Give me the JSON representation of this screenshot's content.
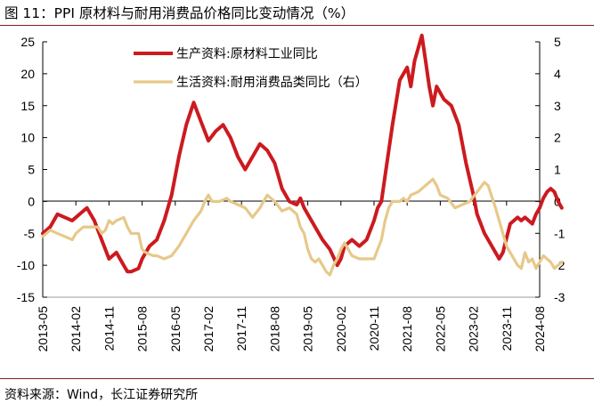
{
  "title": "图 11：PPI 原材料与耐用消费品价格同比变动情况（%）",
  "source": "资料来源：Wind，长江证券研究所",
  "colors": {
    "primary": "#cc1a1f",
    "secondary": "#e6c98a",
    "axis": "#000000",
    "rule": "#7f1f24"
  },
  "chart_data": {
    "type": "line",
    "left_ylim": [
      -15,
      25
    ],
    "right_ylim": [
      -3,
      5
    ],
    "left_yticks": [
      -15,
      -10,
      -5,
      0,
      5,
      10,
      15,
      20,
      25
    ],
    "right_yticks": [
      -3,
      -2,
      -1,
      0,
      1,
      2,
      3,
      4,
      5
    ],
    "x_tick_labels": [
      "2013-05",
      "2014-02",
      "2014-11",
      "2015-08",
      "2016-05",
      "2017-02",
      "2017-11",
      "2018-08",
      "2019-05",
      "2020-02",
      "2020-11",
      "2021-08",
      "2022-05",
      "2023-02",
      "2023-11",
      "2024-08"
    ],
    "x_tick_months": 9,
    "start_month": "2013-05",
    "end_month": "2024-08",
    "series": [
      {
        "name": "生产资料:原材料工业同比",
        "axis": "left",
        "color": "#cc1a1f",
        "points": [
          [
            0,
            -5
          ],
          [
            2,
            -4
          ],
          [
            4,
            -2
          ],
          [
            6,
            -2.5
          ],
          [
            8,
            -3
          ],
          [
            10,
            -2
          ],
          [
            12,
            -1
          ],
          [
            14,
            -3
          ],
          [
            16,
            -6
          ],
          [
            17,
            -7.5
          ],
          [
            18,
            -9
          ],
          [
            19,
            -8.5
          ],
          [
            20,
            -8
          ],
          [
            22,
            -10
          ],
          [
            23,
            -11
          ],
          [
            24,
            -11
          ],
          [
            26,
            -10.5
          ],
          [
            27,
            -9
          ],
          [
            29,
            -7
          ],
          [
            31,
            -6
          ],
          [
            33,
            -3
          ],
          [
            35,
            1
          ],
          [
            37,
            7
          ],
          [
            39,
            12
          ],
          [
            41,
            15.5
          ],
          [
            43,
            12.5
          ],
          [
            45,
            9.5
          ],
          [
            47,
            11
          ],
          [
            49,
            12
          ],
          [
            51,
            10
          ],
          [
            53,
            7
          ],
          [
            55,
            5
          ],
          [
            57,
            7
          ],
          [
            59,
            9
          ],
          [
            61,
            8
          ],
          [
            63,
            6
          ],
          [
            65,
            2
          ],
          [
            67,
            0
          ],
          [
            69,
            -0.5
          ],
          [
            70,
            0.5
          ],
          [
            71,
            -1
          ],
          [
            73,
            -3
          ],
          [
            75,
            -5
          ],
          [
            76,
            -6
          ],
          [
            78,
            -7.5
          ],
          [
            80,
            -10
          ],
          [
            81,
            -9
          ],
          [
            82,
            -7
          ],
          [
            84,
            -6
          ],
          [
            86,
            -7
          ],
          [
            88,
            -6
          ],
          [
            90,
            -3
          ],
          [
            91,
            -1
          ],
          [
            92,
            0
          ],
          [
            93,
            4
          ],
          [
            95,
            12
          ],
          [
            97,
            19
          ],
          [
            99,
            21
          ],
          [
            100,
            18
          ],
          [
            101,
            22
          ],
          [
            102,
            24
          ],
          [
            103,
            26
          ],
          [
            104,
            22
          ],
          [
            105,
            18
          ],
          [
            106,
            15
          ],
          [
            107,
            18
          ],
          [
            109,
            16
          ],
          [
            111,
            15
          ],
          [
            113,
            12
          ],
          [
            115,
            6
          ],
          [
            117,
            1
          ],
          [
            118,
            -2
          ],
          [
            120,
            -5
          ],
          [
            122,
            -7
          ],
          [
            124,
            -9
          ],
          [
            125,
            -8
          ],
          [
            127,
            -3.5
          ],
          [
            128,
            -3
          ],
          [
            129,
            -2.5
          ],
          [
            130,
            -3
          ],
          [
            131,
            -2.5
          ],
          [
            132,
            -3
          ],
          [
            133,
            -3.5
          ],
          [
            134,
            -2
          ],
          [
            135,
            -1
          ],
          [
            136,
            0.5
          ],
          [
            137,
            1.5
          ],
          [
            138,
            2
          ],
          [
            139,
            1.5
          ],
          [
            140,
            0
          ],
          [
            141,
            -1
          ]
        ]
      },
      {
        "name": "生活资料:耐用消费品类同比（右）",
        "axis": "right",
        "color": "#e6c98a",
        "points": [
          [
            0,
            -1.1
          ],
          [
            2,
            -0.9
          ],
          [
            4,
            -1.0
          ],
          [
            6,
            -1.1
          ],
          [
            8,
            -1.2
          ],
          [
            9,
            -1.0
          ],
          [
            11,
            -0.8
          ],
          [
            13,
            -0.8
          ],
          [
            15,
            -0.8
          ],
          [
            16,
            -1.0
          ],
          [
            17,
            -0.9
          ],
          [
            18,
            -0.6
          ],
          [
            19,
            -0.7
          ],
          [
            20,
            -0.6
          ],
          [
            22,
            -0.5
          ],
          [
            23,
            -0.8
          ],
          [
            24,
            -1.0
          ],
          [
            26,
            -1.0
          ],
          [
            27,
            -1.5
          ],
          [
            28,
            -1.6
          ],
          [
            30,
            -1.7
          ],
          [
            31,
            -1.7
          ],
          [
            33,
            -1.8
          ],
          [
            35,
            -1.7
          ],
          [
            37,
            -1.4
          ],
          [
            39,
            -1.0
          ],
          [
            41,
            -0.6
          ],
          [
            43,
            -0.3
          ],
          [
            44,
            0.0
          ],
          [
            45,
            0.2
          ],
          [
            46,
            0.0
          ],
          [
            48,
            0.0
          ],
          [
            50,
            0.1
          ],
          [
            51,
            0.0
          ],
          [
            53,
            -0.1
          ],
          [
            55,
            -0.2
          ],
          [
            57,
            -0.5
          ],
          [
            59,
            -0.2
          ],
          [
            61,
            0.2
          ],
          [
            63,
            0.0
          ],
          [
            65,
            -0.3
          ],
          [
            67,
            -0.2
          ],
          [
            69,
            -0.4
          ],
          [
            70,
            -0.8
          ],
          [
            71,
            -1.0
          ],
          [
            72,
            -1.5
          ],
          [
            73,
            -1.8
          ],
          [
            74,
            -1.9
          ],
          [
            75,
            -1.8
          ],
          [
            76,
            -2.0
          ],
          [
            77,
            -2.2
          ],
          [
            78,
            -2.3
          ],
          [
            79,
            -2.0
          ],
          [
            80,
            -1.8
          ],
          [
            81,
            -1.5
          ],
          [
            82,
            -1.3
          ],
          [
            84,
            -1.7
          ],
          [
            86,
            -1.8
          ],
          [
            88,
            -1.8
          ],
          [
            90,
            -1.8
          ],
          [
            91,
            -1.5
          ],
          [
            92,
            -1.2
          ],
          [
            93,
            -0.6
          ],
          [
            94,
            -0.2
          ],
          [
            95,
            0.0
          ],
          [
            97,
            0.0
          ],
          [
            98,
            0.1
          ],
          [
            99,
            0.0
          ],
          [
            100,
            0.2
          ],
          [
            102,
            0.3
          ],
          [
            104,
            0.5
          ],
          [
            106,
            0.7
          ],
          [
            107,
            0.5
          ],
          [
            108,
            0.2
          ],
          [
            110,
            0.1
          ],
          [
            112,
            -0.2
          ],
          [
            114,
            -0.1
          ],
          [
            116,
            0.0
          ],
          [
            118,
            0.3
          ],
          [
            120,
            0.6
          ],
          [
            121,
            0.5
          ],
          [
            123,
            -0.2
          ],
          [
            124,
            -0.6
          ],
          [
            125,
            -1.0
          ],
          [
            126,
            -1.4
          ],
          [
            127,
            -1.6
          ],
          [
            128,
            -1.8
          ],
          [
            129,
            -2.0
          ],
          [
            130,
            -2.1
          ],
          [
            131,
            -1.6
          ],
          [
            132,
            -1.9
          ],
          [
            133,
            -1.8
          ],
          [
            134,
            -2.1
          ],
          [
            135,
            -1.9
          ],
          [
            136,
            -1.7
          ],
          [
            138,
            -1.9
          ],
          [
            139,
            -2.1
          ],
          [
            140,
            -2.0
          ],
          [
            141,
            -1.9
          ]
        ]
      }
    ]
  }
}
